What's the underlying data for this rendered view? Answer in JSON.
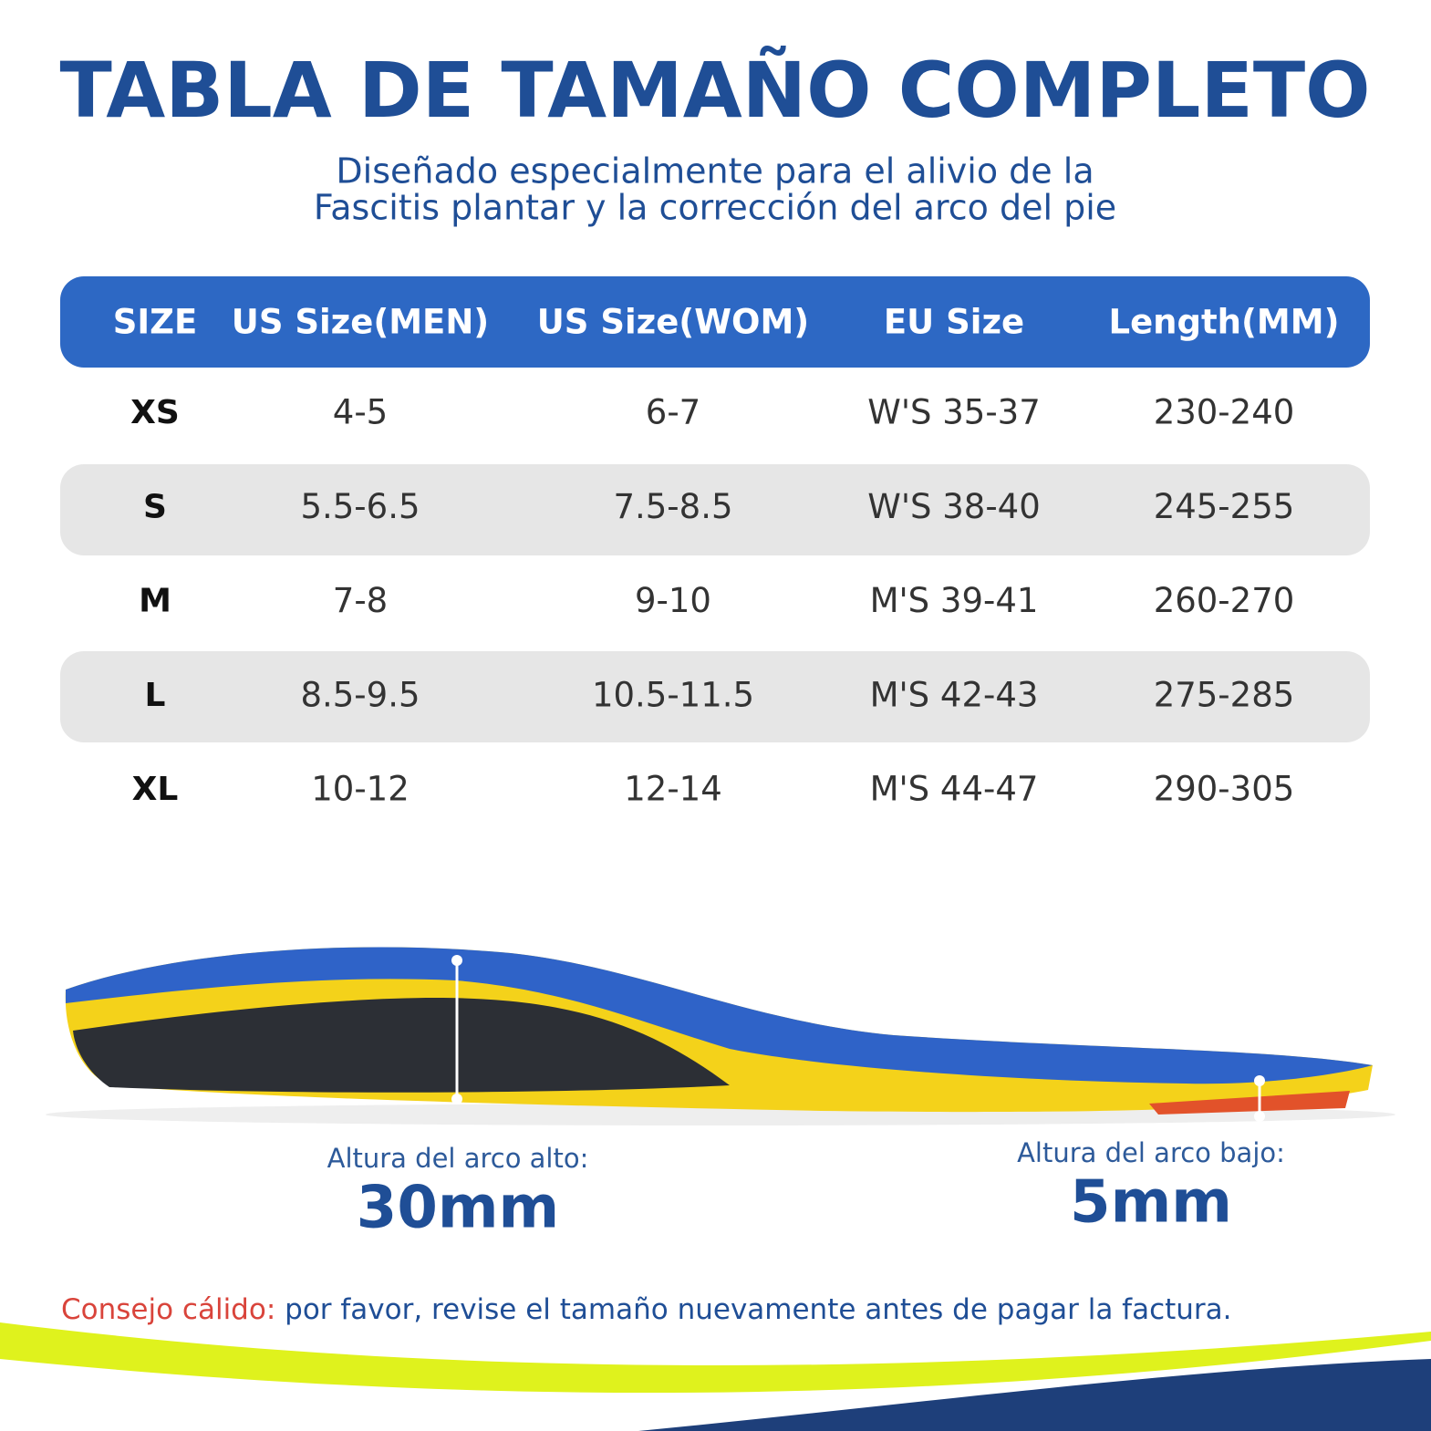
{
  "header": {
    "title": "TABLA DE TAMAÑO COMPLETO",
    "subtitle": [
      "Diseñado especialmente para el alivio de la",
      "Fascitis plantar y la corrección del arco del pie"
    ]
  },
  "table": {
    "columns": [
      "SIZE",
      "US Size(MEN)",
      "US Size(WOM)",
      "EU Size",
      "Length(MM)"
    ],
    "rows": [
      [
        "XS",
        "4-5",
        "6-7",
        "W'S 35-37",
        "230-240"
      ],
      [
        "S",
        "5.5-6.5",
        "7.5-8.5",
        "W'S 38-40",
        "245-255"
      ],
      [
        "M",
        "7-8",
        "9-10",
        "M'S 39-41",
        "260-270"
      ],
      [
        "L",
        "8.5-9.5",
        "10.5-11.5",
        "M'S 42-43",
        "275-285"
      ],
      [
        "XL",
        "10-12",
        "12-14",
        "M'S 44-47",
        "290-305"
      ]
    ]
  },
  "measurements": [
    {
      "label": "Altura del arco alto:",
      "value": "30mm"
    },
    {
      "label": "Altura del arco bajo:",
      "value": "5mm"
    }
  ],
  "tip": {
    "label": "Consejo cálido:",
    "text": " por favor, revise el tamaño nuevamente antes de pagar la factura."
  }
}
